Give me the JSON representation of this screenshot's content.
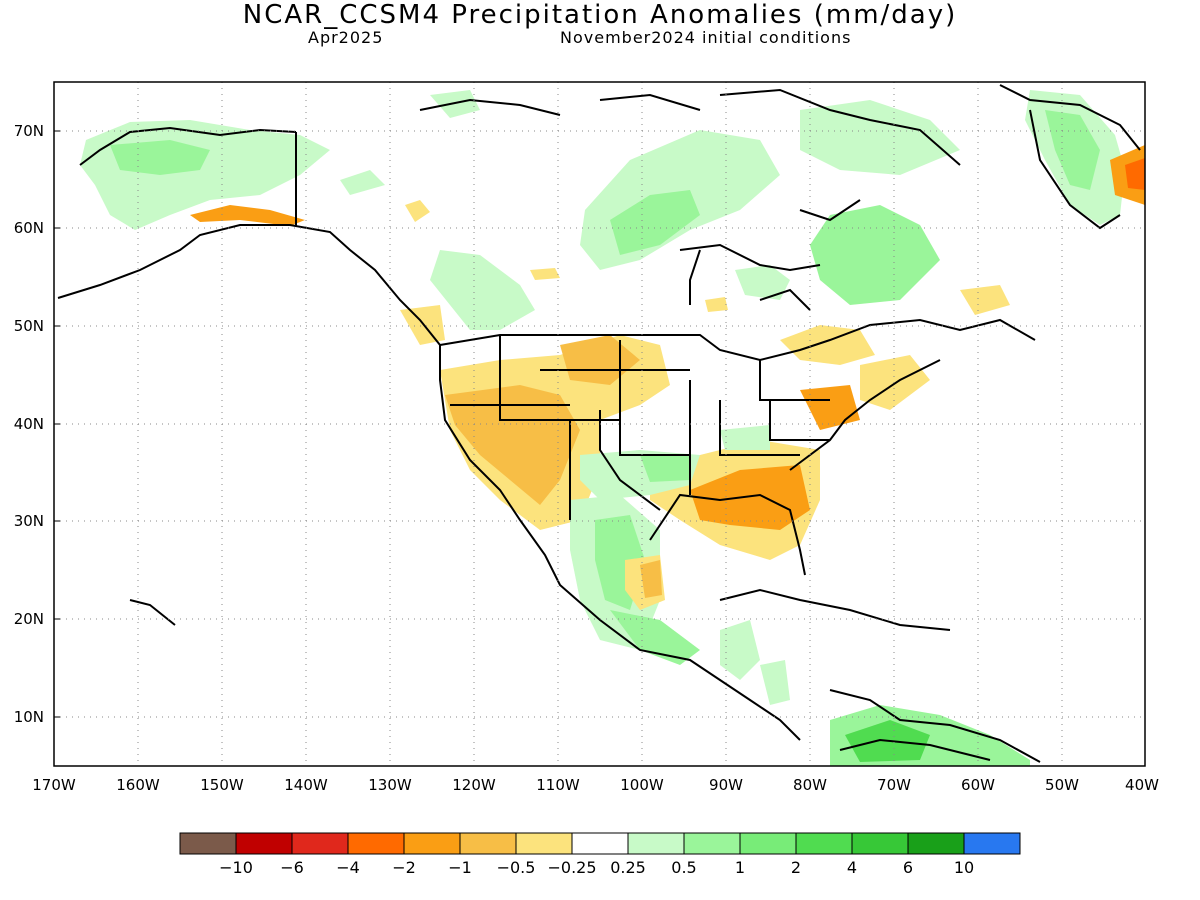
{
  "header": {
    "title": "NCAR_CCSM4 Precipitation Anomalies (mm/day)",
    "valid_month": "Apr2025",
    "init_conditions": "November2024 initial conditions"
  },
  "map": {
    "lon_ticks": [
      "170W",
      "160W",
      "150W",
      "140W",
      "130W",
      "120W",
      "110W",
      "100W",
      "90W",
      "80W",
      "70W",
      "60W",
      "50W",
      "40W"
    ],
    "lat_ticks": [
      "70N",
      "60N",
      "50N",
      "40N",
      "30N",
      "20N",
      "10N"
    ],
    "lon_range": [
      -170,
      -40
    ],
    "lat_range": [
      5,
      75
    ],
    "grid": "dotted"
  },
  "colorbar": {
    "colors": [
      "#7b5a4a",
      "#c00000",
      "#e0281c",
      "#ff6a00",
      "#fa9e14",
      "#f7be46",
      "#fce37d",
      "#ffffff",
      "#c8fac8",
      "#9af59a",
      "#78ec78",
      "#50dc50",
      "#37c837",
      "#19a019",
      "#2878f0"
    ],
    "labels": [
      "−10",
      "−6",
      "−4",
      "−2",
      "−1",
      "−0.5",
      "−0.25",
      "0.25",
      "0.5",
      "1",
      "2",
      "4",
      "6",
      "10"
    ]
  },
  "legend_colors": {
    "dry_moderate": "#fce37d",
    "dry": "#f7be46",
    "dry_strong": "#fa9e14",
    "dry_extreme": "#ff6a00",
    "wet_light": "#c8fac8",
    "wet": "#9af59a",
    "wet_strong": "#50dc50",
    "wet_extreme": "#19a019"
  }
}
